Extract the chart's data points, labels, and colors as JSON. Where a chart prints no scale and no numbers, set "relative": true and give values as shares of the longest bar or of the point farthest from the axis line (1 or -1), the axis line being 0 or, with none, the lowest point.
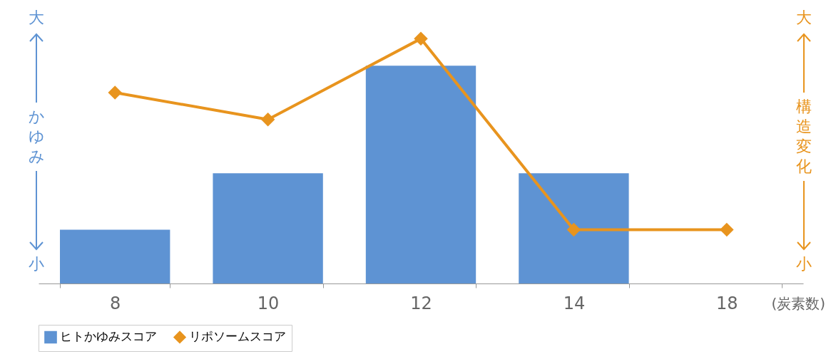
{
  "chart_data": {
    "type": "bar",
    "relative": true,
    "categories": [
      "8",
      "10",
      "12",
      "14",
      "18"
    ],
    "xlabel": "(炭素数)",
    "ylabel": "かゆみ",
    "y2label": "構造変化",
    "series": [
      {
        "name": "ヒトかゆみスコア",
        "color": "#5e93d3",
        "values": [
          0.22,
          0.45,
          0.89,
          0.45,
          null
        ]
      },
      {
        "name": "リポソームスコア",
        "type": "line",
        "color": "#e8941e",
        "values": [
          0.78,
          0.67,
          1,
          0.22,
          0.22
        ]
      }
    ],
    "annotations": [
      "大",
      "小",
      "大",
      "小"
    ],
    "marker": "diamond",
    "legend": "bottom",
    "grid": false
  }
}
